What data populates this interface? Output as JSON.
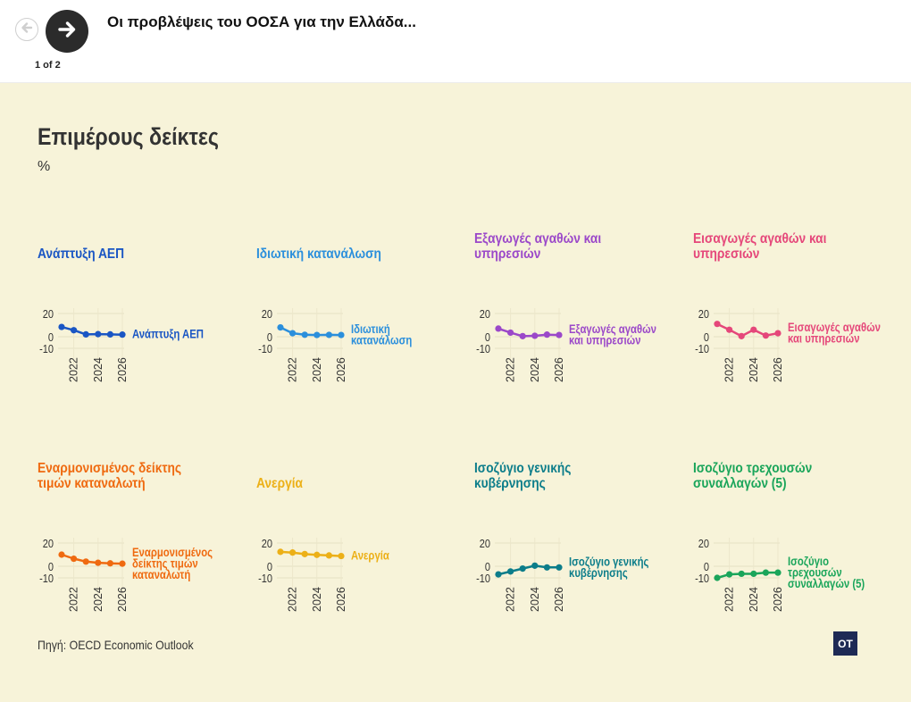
{
  "header": {
    "title": "Οι προβλέψεις του ΟΟΣΑ για την Ελλάδα...",
    "page_indicator": "1 of 2",
    "prev_icon": "arrow-left-icon",
    "next_icon": "arrow-right-icon"
  },
  "panel": {
    "title": "Επιμέρους δείκτες",
    "unit": "%",
    "background": "#f7f3d9"
  },
  "footer": {
    "source": "Πηγή: OECD Economic Outlook",
    "logo_text": "OT"
  },
  "chart_data": [
    {
      "type": "line",
      "title": "Ανάπτυξη ΑΕΠ",
      "label": [
        "Ανάπτυξη ΑΕΠ"
      ],
      "color": "#1a56c4",
      "x": [
        2021,
        2022,
        2023,
        2024,
        2025,
        2026
      ],
      "y": [
        8.4,
        5.6,
        2.0,
        2.2,
        2.0,
        1.8
      ],
      "ylim": [
        -10,
        20
      ],
      "y_ticks": [
        "20",
        "0",
        "-10"
      ],
      "x_ticks": [
        "2022",
        "2024",
        "2026"
      ]
    },
    {
      "type": "line",
      "title": "Ιδιωτική κατανάλωση",
      "label": [
        "Ιδιωτική",
        "κατανάλωση"
      ],
      "color": "#2b8fdc",
      "x": [
        2021,
        2022,
        2023,
        2024,
        2025,
        2026
      ],
      "y": [
        8.0,
        3.0,
        1.7,
        1.5,
        1.6,
        1.5
      ],
      "ylim": [
        -10,
        20
      ],
      "y_ticks": [
        "20",
        "0",
        "-10"
      ],
      "x_ticks": [
        "2022",
        "2024",
        "2026"
      ]
    },
    {
      "type": "line",
      "title": "Εξαγωγές αγαθών και υπηρεσιών",
      "label": [
        "Εξαγωγές αγαθών",
        "και υπηρεσιών"
      ],
      "color": "#9b48c9",
      "x": [
        2021,
        2022,
        2023,
        2024,
        2025,
        2026
      ],
      "y": [
        7.0,
        3.5,
        0.5,
        0.8,
        1.8,
        1.5
      ],
      "ylim": [
        -10,
        20
      ],
      "y_ticks": [
        "20",
        "0",
        "-10"
      ],
      "x_ticks": [
        "2022",
        "2024",
        "2026"
      ]
    },
    {
      "type": "line",
      "title": "Εισαγωγές αγαθών και υπηρεσιών",
      "label": [
        "Εισαγωγές αγαθών",
        "και υπηρεσιών"
      ],
      "color": "#e5477a",
      "x": [
        2021,
        2022,
        2023,
        2024,
        2025,
        2026
      ],
      "y": [
        11.0,
        6.0,
        0.5,
        6.0,
        1.0,
        3.0
      ],
      "ylim": [
        -10,
        20
      ],
      "y_ticks": [
        "20",
        "0",
        "-10"
      ],
      "x_ticks": [
        "2022",
        "2024",
        "2026"
      ]
    },
    {
      "type": "line",
      "title": "Εναρμονισμένος δείκτης τιμών καταναλωτή",
      "label": [
        "Εναρμονισμένος",
        "δείκτης τιμών",
        "καταναλωτή"
      ],
      "color": "#ef6a10",
      "x": [
        2021,
        2022,
        2023,
        2024,
        2025,
        2026
      ],
      "y": [
        10.0,
        6.5,
        4.0,
        3.0,
        2.5,
        2.2
      ],
      "ylim": [
        -10,
        20
      ],
      "y_ticks": [
        "20",
        "0",
        "-10"
      ],
      "x_ticks": [
        "2022",
        "2024",
        "2026"
      ]
    },
    {
      "type": "line",
      "title": "Ανεργία",
      "label": [
        "Ανεργία"
      ],
      "color": "#ecb017",
      "x": [
        2021,
        2022,
        2023,
        2024,
        2025,
        2026
      ],
      "y": [
        12.4,
        11.8,
        10.5,
        9.8,
        9.3,
        8.8
      ],
      "ylim": [
        -10,
        20
      ],
      "y_ticks": [
        "20",
        "0",
        "-10"
      ],
      "x_ticks": [
        "2022",
        "2024",
        "2026"
      ]
    },
    {
      "type": "line",
      "title": "Ισοζύγιο γενικής κυβέρνησης",
      "label": [
        "Ισοζύγιο γενικής",
        "κυβέρνησης"
      ],
      "color": "#0c7d8a",
      "x": [
        2021,
        2022,
        2023,
        2024,
        2025,
        2026
      ],
      "y": [
        -7.0,
        -4.5,
        -2.0,
        0.5,
        -1.0,
        -1.0
      ],
      "ylim": [
        -10,
        20
      ],
      "y_ticks": [
        "20",
        "0",
        "-10"
      ],
      "x_ticks": [
        "2022",
        "2024",
        "2026"
      ]
    },
    {
      "type": "line",
      "title": "Ισοζύγιο τρεχουσών συναλλαγών (5)",
      "label": [
        "Ισοζύγιο",
        "τρεχουσών",
        "συναλλαγών (5)"
      ],
      "color": "#1aa55a",
      "x": [
        2021,
        2022,
        2023,
        2024,
        2025,
        2026
      ],
      "y": [
        -10.0,
        -7.0,
        -6.5,
        -6.5,
        -5.5,
        -5.5
      ],
      "ylim": [
        -10,
        20
      ],
      "y_ticks": [
        "20",
        "0",
        "-10"
      ],
      "x_ticks": [
        "2022",
        "2024",
        "2026"
      ]
    }
  ]
}
